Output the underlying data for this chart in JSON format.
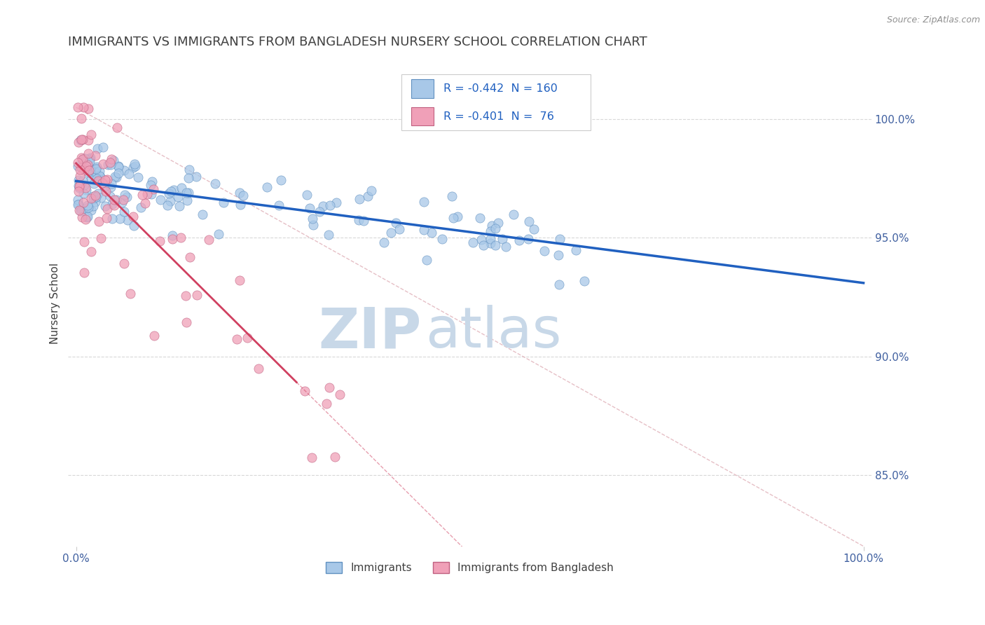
{
  "title": "IMMIGRANTS VS IMMIGRANTS FROM BANGLADESH NURSERY SCHOOL CORRELATION CHART",
  "source": "Source: ZipAtlas.com",
  "ylabel": "Nursery School",
  "legend_label_blue": "Immigrants",
  "legend_label_pink": "Immigrants from Bangladesh",
  "R_blue": -0.442,
  "N_blue": 160,
  "R_pink": -0.401,
  "N_pink": 76,
  "x_min": 0.0,
  "x_max": 1.0,
  "y_min": 0.82,
  "y_max": 1.025,
  "y_ticks": [
    0.85,
    0.9,
    0.95,
    1.0
  ],
  "y_tick_labels": [
    "85.0%",
    "90.0%",
    "95.0%",
    "100.0%"
  ],
  "x_ticks": [
    0.0,
    1.0
  ],
  "x_tick_labels": [
    "0.0%",
    "100.0%"
  ],
  "color_blue": "#a8c8e8",
  "color_blue_edge": "#6090c0",
  "color_blue_line": "#2060c0",
  "color_pink": "#f0a0b8",
  "color_pink_edge": "#c06080",
  "color_pink_line": "#d04060",
  "color_diagonal": "#e0b0b8",
  "watermark_color": "#c8d8e8",
  "title_color": "#404040",
  "title_fontsize": 13,
  "axis_label_color": "#4060a0",
  "legend_text_color": "#2060c0",
  "legend_R_color": "#d04060"
}
